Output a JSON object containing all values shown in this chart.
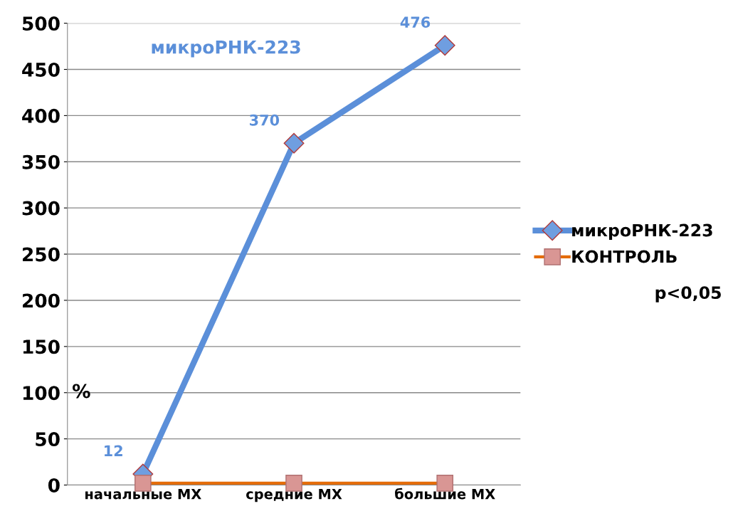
{
  "chart_data": {
    "type": "line",
    "title": "микроРНК-223",
    "ylabel": "%",
    "categories": [
      "начальные МХ",
      "средние МХ",
      "большие МХ"
    ],
    "series": [
      {
        "name": "микроРНК-223",
        "color": "#5b8fd9",
        "marker": "diamond",
        "values": [
          12,
          370,
          476
        ],
        "value_labels": [
          "12",
          "370",
          "476"
        ]
      },
      {
        "name": "КОНТРОЛЬ",
        "color": "#e46c0a",
        "marker": "square",
        "values": [
          2,
          2,
          2
        ]
      }
    ],
    "ylim": [
      0,
      500
    ],
    "yticks": [
      0,
      50,
      100,
      150,
      200,
      250,
      300,
      350,
      400,
      450,
      500
    ],
    "grid": "y",
    "legend": "right",
    "line_style": "solid",
    "annotations": [
      "p<0,05"
    ]
  }
}
